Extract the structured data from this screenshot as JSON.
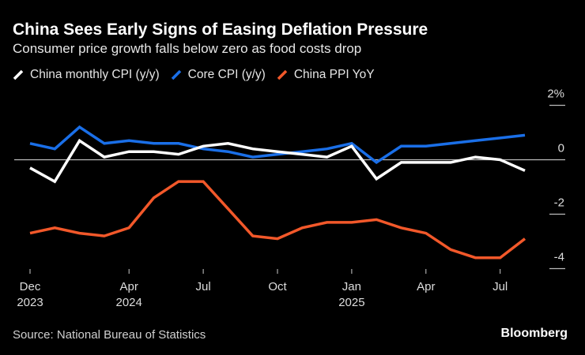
{
  "chart_data": {
    "type": "line",
    "title": "China Sees Early Signs of Easing Deflation Pressure",
    "subtitle": "Consumer price growth falls below zero as food costs drop",
    "x": [
      "2023-12",
      "2024-01",
      "2024-02",
      "2024-03",
      "2024-04",
      "2024-05",
      "2024-06",
      "2024-07",
      "2024-08",
      "2024-09",
      "2024-10",
      "2024-11",
      "2024-12",
      "2025-01",
      "2025-02",
      "2025-03",
      "2025-04",
      "2025-05",
      "2025-06",
      "2025-07",
      "2025-08"
    ],
    "x_ticks": [
      {
        "index": 0,
        "label": "Dec",
        "year": "2023"
      },
      {
        "index": 4,
        "label": "Apr",
        "year": "2024"
      },
      {
        "index": 7,
        "label": "Jul",
        "year": ""
      },
      {
        "index": 10,
        "label": "Oct",
        "year": ""
      },
      {
        "index": 13,
        "label": "Jan",
        "year": "2025"
      },
      {
        "index": 16,
        "label": "Apr",
        "year": ""
      },
      {
        "index": 19,
        "label": "Jul",
        "year": ""
      }
    ],
    "y_ticks": [
      {
        "value": 2,
        "label": "2%"
      },
      {
        "value": 0,
        "label": "0"
      },
      {
        "value": -2,
        "label": "-2"
      },
      {
        "value": -4,
        "label": "-4"
      }
    ],
    "ylim": [
      -4,
      2
    ],
    "series": [
      {
        "name": "China monthly CPI (y/y)",
        "color": "#ffffff",
        "values": [
          -0.3,
          -0.8,
          0.7,
          0.1,
          0.3,
          0.3,
          0.2,
          0.5,
          0.6,
          0.4,
          0.3,
          0.2,
          0.1,
          0.5,
          -0.7,
          -0.1,
          -0.1,
          -0.1,
          0.1,
          0.0,
          -0.4
        ]
      },
      {
        "name": "Core CPI (y/y)",
        "color": "#1a6fe8",
        "values": [
          0.6,
          0.4,
          1.2,
          0.6,
          0.7,
          0.6,
          0.6,
          0.4,
          0.3,
          0.1,
          0.2,
          0.3,
          0.4,
          0.6,
          -0.1,
          0.5,
          0.5,
          0.6,
          0.7,
          0.8,
          0.9
        ]
      },
      {
        "name": "China PPI YoY",
        "color": "#f2582a",
        "values": [
          -2.7,
          -2.5,
          -2.7,
          -2.8,
          -2.5,
          -1.4,
          -0.8,
          -0.8,
          -1.8,
          -2.8,
          -2.9,
          -2.5,
          -2.3,
          -2.3,
          -2.2,
          -2.5,
          -2.7,
          -3.3,
          -3.6,
          -3.6,
          -2.9
        ]
      }
    ],
    "grid": false,
    "legend_placement": "top-left"
  },
  "source": "Source: National Bureau of Statistics",
  "brand": "Bloomberg"
}
